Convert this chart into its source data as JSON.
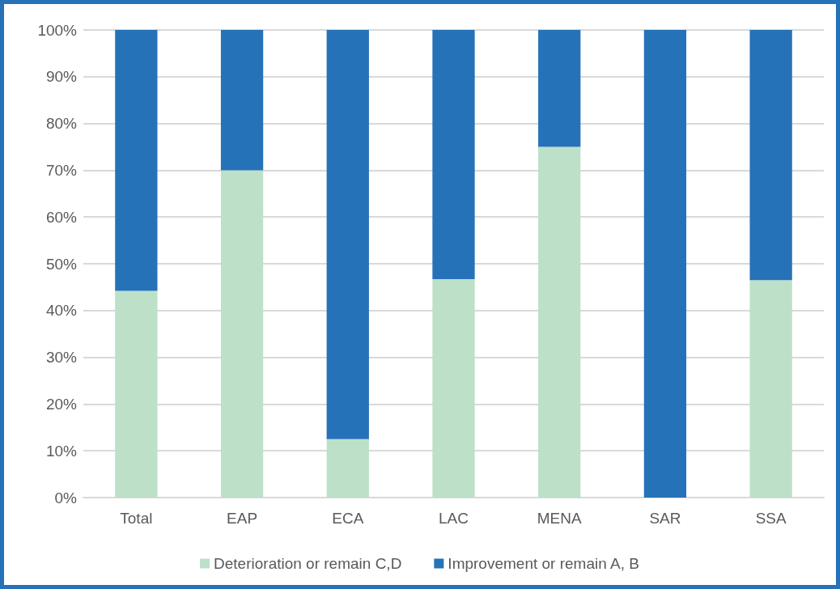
{
  "chart_data": {
    "type": "bar",
    "stacked": true,
    "categories": [
      "Total",
      "EAP",
      "ECA",
      "LAC",
      "MENA",
      "SAR",
      "SSA"
    ],
    "series": [
      {
        "name": "Deterioration or remain C,D",
        "color": "#bde0c8",
        "values": [
          44.2,
          70,
          12.5,
          46.7,
          75,
          0,
          46.5
        ]
      },
      {
        "name": "Improvement or remain A, B",
        "color": "#2672b8",
        "values": [
          55.8,
          30,
          87.5,
          53.3,
          25,
          100,
          53.5
        ]
      }
    ],
    "ylim": [
      0,
      100
    ],
    "yticks": [
      {
        "value": 0,
        "label": "0%"
      },
      {
        "value": 10,
        "label": "10%"
      },
      {
        "value": 20,
        "label": "20%"
      },
      {
        "value": 30,
        "label": "30%"
      },
      {
        "value": 40,
        "label": "40%"
      },
      {
        "value": 50,
        "label": "50%"
      },
      {
        "value": 60,
        "label": "60%"
      },
      {
        "value": 70,
        "label": "70%"
      },
      {
        "value": 80,
        "label": "80%"
      },
      {
        "value": 90,
        "label": "90%"
      },
      {
        "value": 100,
        "label": "100%"
      }
    ],
    "grid": true,
    "legend": "bottom"
  }
}
